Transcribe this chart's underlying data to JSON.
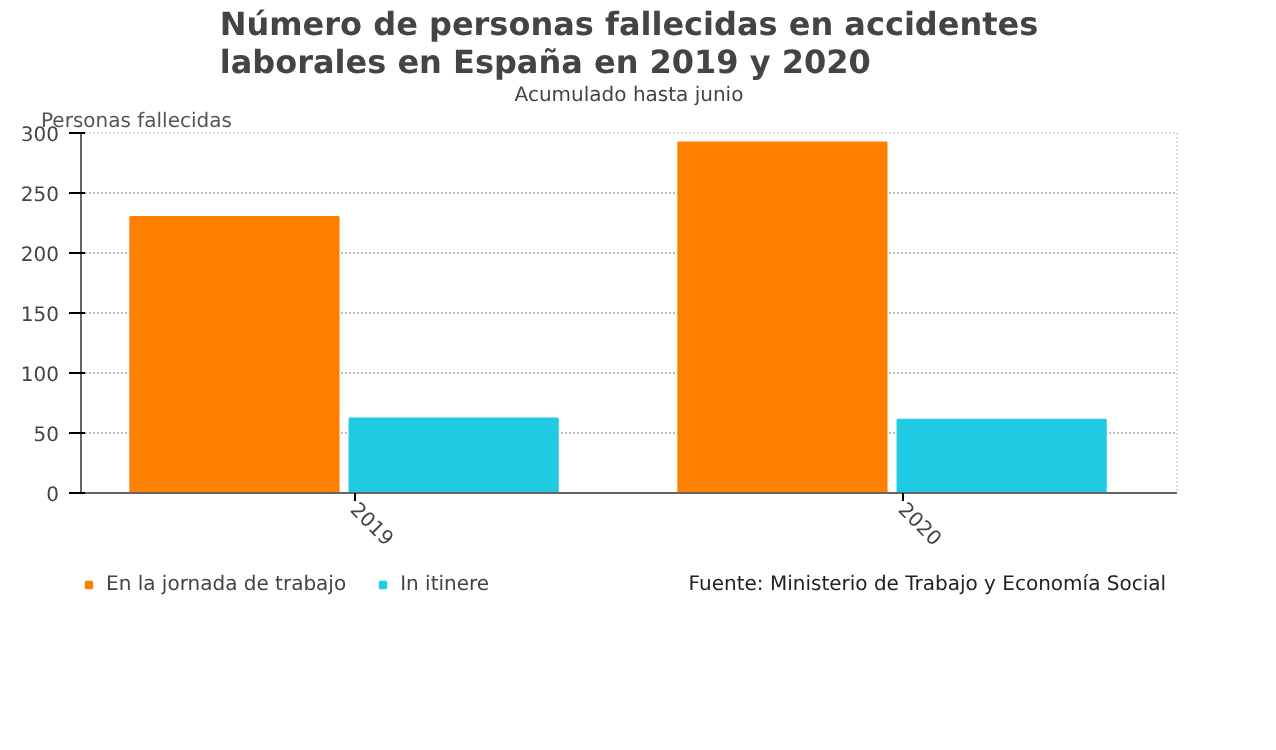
{
  "chart_data": {
    "type": "bar",
    "title": "Número de personas fallecidas en accidentes laborales en España en 2019 y 2020",
    "subtitle": "Acumulado hasta junio",
    "ylabel": "Personas fallecidas",
    "categories": [
      "2019",
      "2020"
    ],
    "series": [
      {
        "name": "En la jornada de trabajo",
        "color": "#ff7f00",
        "values": [
          230,
          292
        ]
      },
      {
        "name": "In itinere",
        "color": "#1fcbe3",
        "values": [
          62,
          61
        ]
      }
    ],
    "ylim": [
      0,
      300
    ],
    "yticks": [
      0,
      50,
      100,
      150,
      200,
      250,
      300
    ],
    "grid": "y",
    "legend": "bottom",
    "annotations": [
      "Fuente: Ministerio de Trabajo y Economía Social"
    ]
  }
}
